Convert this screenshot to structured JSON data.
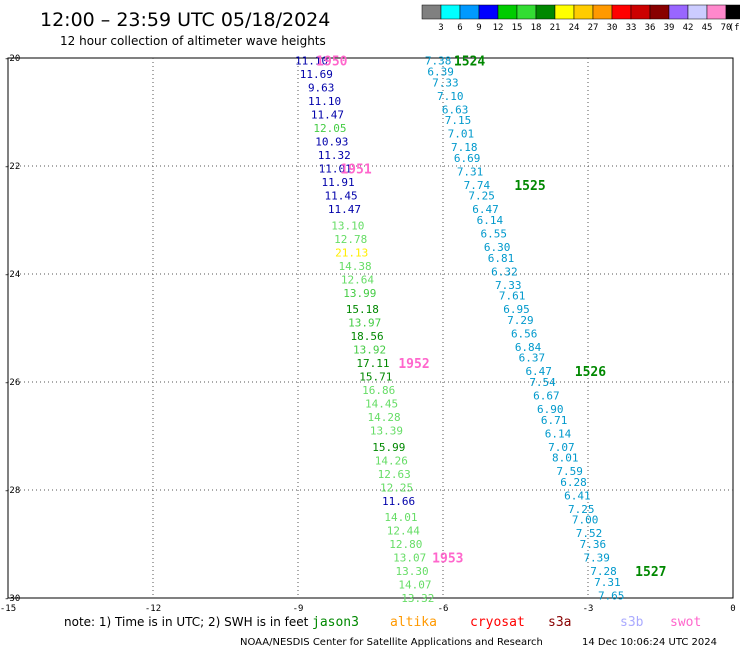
{
  "title": "12:00 – 23:59 UTC 05/18/2024",
  "subtitle": "12 hour collection of altimeter wave heights",
  "colorbar": {
    "colors": [
      "#808080",
      "#00ffff",
      "#0099ff",
      "#0000ff",
      "#00cc00",
      "#33dd33",
      "#008800",
      "#ffff00",
      "#ffcc00",
      "#ff9900",
      "#ff0000",
      "#cc0000",
      "#880000",
      "#9966ff",
      "#ccccff",
      "#ff88cc",
      "#000000"
    ],
    "labels": [
      "3",
      "6",
      "9",
      "12",
      "15",
      "18",
      "21",
      "24",
      "27",
      "30",
      "33",
      "36",
      "39",
      "42",
      "45",
      "70",
      "(ft)"
    ]
  },
  "note": {
    "text": "note: 1) Time is in UTC; 2) SWH is in feet",
    "missions": [
      {
        "name": "jason3",
        "color": "#008800"
      },
      {
        "name": "altika",
        "color": "#ff9900"
      },
      {
        "name": "cryosat",
        "color": "#ff0000"
      },
      {
        "name": "s3a",
        "color": "#880000"
      },
      {
        "name": "s3b",
        "color": "#aaaaff"
      },
      {
        "name": "swot",
        "color": "#ff66cc"
      }
    ]
  },
  "footer": {
    "credit": "NOAA/NESDIS Center for Satellite Applications and Research",
    "timestamp": "14 Dec 10:06:24 UTC 2024"
  },
  "chart_data": {
    "type": "scatter",
    "xlim": [
      -15,
      0
    ],
    "ylim": [
      -30,
      -20
    ],
    "xticks": [
      "-15",
      "-12",
      "-9",
      "-6",
      "-3",
      "0"
    ],
    "yticks": [
      "-20",
      "-22",
      "-24",
      "-26",
      "-28",
      "-30"
    ],
    "grid": true,
    "tracks": [
      {
        "label": "1950",
        "label_lon": -8.3,
        "label_lat": -20.05,
        "label_color": "#ff66cc",
        "points": [
          {
            "lon": -8.72,
            "lat": -20.05,
            "v": "11.10",
            "c": "#0000aa"
          },
          {
            "lon": -8.62,
            "lat": -20.3,
            "v": "11.69",
            "c": "#0000aa"
          },
          {
            "lon": -8.52,
            "lat": -20.55,
            "v": "9.63",
            "c": "#0000aa"
          },
          {
            "lon": -8.45,
            "lat": -20.8,
            "v": "11.10",
            "c": "#0000aa"
          },
          {
            "lon": -8.39,
            "lat": -21.05,
            "v": "11.47",
            "c": "#0000aa"
          },
          {
            "lon": -8.34,
            "lat": -21.3,
            "v": "12.05",
            "c": "#44cc44"
          },
          {
            "lon": -8.3,
            "lat": -21.55,
            "v": "10.93",
            "c": "#0000aa"
          },
          {
            "lon": -8.25,
            "lat": -21.8,
            "v": "11.32",
            "c": "#0000aa"
          }
        ]
      },
      {
        "label": "1951",
        "label_lon": -7.8,
        "label_lat": -22.05,
        "label_color": "#ff66cc",
        "points": [
          {
            "lon": -8.23,
            "lat": -22.05,
            "v": "11.01",
            "c": "#0000aa"
          },
          {
            "lon": -8.17,
            "lat": -22.3,
            "v": "11.91",
            "c": "#0000aa"
          },
          {
            "lon": -8.11,
            "lat": -22.55,
            "v": "11.45",
            "c": "#0000aa"
          },
          {
            "lon": -8.04,
            "lat": -22.8,
            "v": "11.47",
            "c": "#0000aa"
          },
          {
            "lon": -7.97,
            "lat": -23.1,
            "v": "13.10",
            "c": "#66dd66"
          },
          {
            "lon": -7.91,
            "lat": -23.35,
            "v": "12.78",
            "c": "#66dd66"
          },
          {
            "lon": -7.89,
            "lat": -23.6,
            "v": "21.13",
            "c": "#ffee00"
          },
          {
            "lon": -7.82,
            "lat": -23.85,
            "v": "14.38",
            "c": "#66dd66"
          },
          {
            "lon": -7.77,
            "lat": -24.1,
            "v": "12.64",
            "c": "#66dd66"
          },
          {
            "lon": -7.72,
            "lat": -24.35,
            "v": "13.99",
            "c": "#44cc44"
          },
          {
            "lon": -7.67,
            "lat": -24.65,
            "v": "15.18",
            "c": "#008800"
          },
          {
            "lon": -7.62,
            "lat": -24.9,
            "v": "13.97",
            "c": "#44cc44"
          },
          {
            "lon": -7.57,
            "lat": -25.15,
            "v": "18.56",
            "c": "#008800"
          },
          {
            "lon": -7.52,
            "lat": -25.4,
            "v": "13.92",
            "c": "#44cc44"
          }
        ]
      },
      {
        "label": "1952",
        "label_lon": -6.6,
        "label_lat": -25.65,
        "label_color": "#ff66cc",
        "points": [
          {
            "lon": -7.45,
            "lat": -25.65,
            "v": "17.11",
            "c": "#008800"
          },
          {
            "lon": -7.39,
            "lat": -25.9,
            "v": "15.71",
            "c": "#008800"
          },
          {
            "lon": -7.33,
            "lat": -26.15,
            "v": "16.86",
            "c": "#66dd66"
          },
          {
            "lon": -7.27,
            "lat": -26.4,
            "v": "14.45",
            "c": "#66dd66"
          },
          {
            "lon": -7.22,
            "lat": -26.65,
            "v": "14.28",
            "c": "#66dd66"
          },
          {
            "lon": -7.17,
            "lat": -26.9,
            "v": "13.39",
            "c": "#66dd66"
          },
          {
            "lon": -7.12,
            "lat": -27.2,
            "v": "15.99",
            "c": "#008800"
          },
          {
            "lon": -7.07,
            "lat": -27.45,
            "v": "14.26",
            "c": "#66dd66"
          },
          {
            "lon": -7.01,
            "lat": -27.7,
            "v": "12.63",
            "c": "#66dd66"
          },
          {
            "lon": -6.96,
            "lat": -27.95,
            "v": "12.25",
            "c": "#66dd66"
          },
          {
            "lon": -6.92,
            "lat": -28.2,
            "v": "11.66",
            "c": "#0000aa"
          },
          {
            "lon": -6.87,
            "lat": -28.5,
            "v": "14.01",
            "c": "#66dd66"
          },
          {
            "lon": -6.82,
            "lat": -28.75,
            "v": "12.44",
            "c": "#66dd66"
          },
          {
            "lon": -6.77,
            "lat": -29.0,
            "v": "12.80",
            "c": "#66dd66"
          }
        ]
      },
      {
        "label": "1953",
        "label_lon": -5.9,
        "label_lat": -29.25,
        "label_color": "#ff66cc",
        "points": [
          {
            "lon": -6.69,
            "lat": -29.25,
            "v": "13.07",
            "c": "#66dd66"
          },
          {
            "lon": -6.64,
            "lat": -29.5,
            "v": "13.30",
            "c": "#66dd66"
          },
          {
            "lon": -6.58,
            "lat": -29.75,
            "v": "14.07",
            "c": "#66dd66"
          },
          {
            "lon": -6.52,
            "lat": -30.0,
            "v": "13.32",
            "c": "#66dd66"
          }
        ]
      },
      {
        "label": "1524",
        "label_lon": -5.45,
        "label_lat": -20.05,
        "label_color": "#008800",
        "points": [
          {
            "lon": -6.1,
            "lat": -20.05,
            "v": "7.38",
            "c": "#0099cc"
          },
          {
            "lon": -6.05,
            "lat": -20.25,
            "v": "6.39",
            "c": "#0099cc"
          },
          {
            "lon": -5.95,
            "lat": -20.45,
            "v": "7.33",
            "c": "#0099cc"
          },
          {
            "lon": -5.85,
            "lat": -20.7,
            "v": "7.10",
            "c": "#0099cc"
          },
          {
            "lon": -5.75,
            "lat": -20.95,
            "v": "6.63",
            "c": "#0099cc"
          },
          {
            "lon": -5.69,
            "lat": -21.15,
            "v": "7.15",
            "c": "#0099cc"
          },
          {
            "lon": -5.63,
            "lat": -21.4,
            "v": "7.01",
            "c": "#0099cc"
          },
          {
            "lon": -5.56,
            "lat": -21.65,
            "v": "7.18",
            "c": "#0099cc"
          },
          {
            "lon": -5.5,
            "lat": -21.85,
            "v": "6.69",
            "c": "#0099cc"
          },
          {
            "lon": -5.44,
            "lat": -22.1,
            "v": "7.31",
            "c": "#0099cc"
          }
        ]
      },
      {
        "label": "1525",
        "label_lon": -4.2,
        "label_lat": -22.35,
        "label_color": "#008800",
        "points": [
          {
            "lon": -5.3,
            "lat": -22.35,
            "v": "7.74",
            "c": "#0099cc"
          },
          {
            "lon": -5.2,
            "lat": -22.55,
            "v": "7.25",
            "c": "#0099cc"
          },
          {
            "lon": -5.12,
            "lat": -22.8,
            "v": "6.47",
            "c": "#0099cc"
          },
          {
            "lon": -5.03,
            "lat": -23.0,
            "v": "6.14",
            "c": "#0099cc"
          },
          {
            "lon": -4.95,
            "lat": -23.25,
            "v": "6.55",
            "c": "#0099cc"
          },
          {
            "lon": -4.88,
            "lat": -23.5,
            "v": "6.30",
            "c": "#0099cc"
          },
          {
            "lon": -4.8,
            "lat": -23.7,
            "v": "6.81",
            "c": "#0099cc"
          },
          {
            "lon": -4.73,
            "lat": -23.95,
            "v": "6.32",
            "c": "#0099cc"
          },
          {
            "lon": -4.65,
            "lat": -24.2,
            "v": "7.33",
            "c": "#0099cc"
          },
          {
            "lon": -4.57,
            "lat": -24.4,
            "v": "7.61",
            "c": "#0099cc"
          },
          {
            "lon": -4.48,
            "lat": -24.65,
            "v": "6.95",
            "c": "#0099cc"
          },
          {
            "lon": -4.4,
            "lat": -24.85,
            "v": "7.29",
            "c": "#0099cc"
          },
          {
            "lon": -4.32,
            "lat": -25.1,
            "v": "6.56",
            "c": "#0099cc"
          },
          {
            "lon": -4.24,
            "lat": -25.35,
            "v": "6.84",
            "c": "#0099cc"
          },
          {
            "lon": -4.16,
            "lat": -25.55,
            "v": "6.37",
            "c": "#0099cc"
          }
        ]
      },
      {
        "label": "1526",
        "label_lon": -2.95,
        "label_lat": -25.8,
        "label_color": "#008800",
        "points": [
          {
            "lon": -4.02,
            "lat": -25.8,
            "v": "6.47",
            "c": "#0099cc"
          },
          {
            "lon": -3.94,
            "lat": -26.0,
            "v": "7.54",
            "c": "#0099cc"
          },
          {
            "lon": -3.86,
            "lat": -26.25,
            "v": "6.67",
            "c": "#0099cc"
          },
          {
            "lon": -3.78,
            "lat": -26.5,
            "v": "6.90",
            "c": "#0099cc"
          },
          {
            "lon": -3.7,
            "lat": -26.7,
            "v": "6.71",
            "c": "#0099cc"
          },
          {
            "lon": -3.62,
            "lat": -26.95,
            "v": "6.14",
            "c": "#0099cc"
          },
          {
            "lon": -3.55,
            "lat": -27.2,
            "v": "7.07",
            "c": "#0099cc"
          },
          {
            "lon": -3.47,
            "lat": -27.4,
            "v": "8.01",
            "c": "#0099cc"
          },
          {
            "lon": -3.38,
            "lat": -27.65,
            "v": "7.59",
            "c": "#0099cc"
          },
          {
            "lon": -3.3,
            "lat": -27.85,
            "v": "6.28",
            "c": "#0099cc"
          },
          {
            "lon": -3.22,
            "lat": -28.1,
            "v": "6.41",
            "c": "#0099cc"
          },
          {
            "lon": -3.14,
            "lat": -28.35,
            "v": "7.25",
            "c": "#0099cc"
          },
          {
            "lon": -3.06,
            "lat": -28.55,
            "v": "7.00",
            "c": "#0099cc"
          },
          {
            "lon": -2.98,
            "lat": -28.8,
            "v": "7.52",
            "c": "#0099cc"
          },
          {
            "lon": -2.9,
            "lat": -29.0,
            "v": "7.36",
            "c": "#0099cc"
          },
          {
            "lon": -2.82,
            "lat": -29.25,
            "v": "7.39",
            "c": "#0099cc"
          }
        ]
      },
      {
        "label": "1527",
        "label_lon": -1.7,
        "label_lat": -29.5,
        "label_color": "#008800",
        "points": [
          {
            "lon": -2.68,
            "lat": -29.5,
            "v": "7.28",
            "c": "#0099cc"
          },
          {
            "lon": -2.6,
            "lat": -29.7,
            "v": "7.31",
            "c": "#0099cc"
          },
          {
            "lon": -2.52,
            "lat": -29.95,
            "v": "7.65",
            "c": "#0099cc"
          }
        ]
      }
    ]
  }
}
